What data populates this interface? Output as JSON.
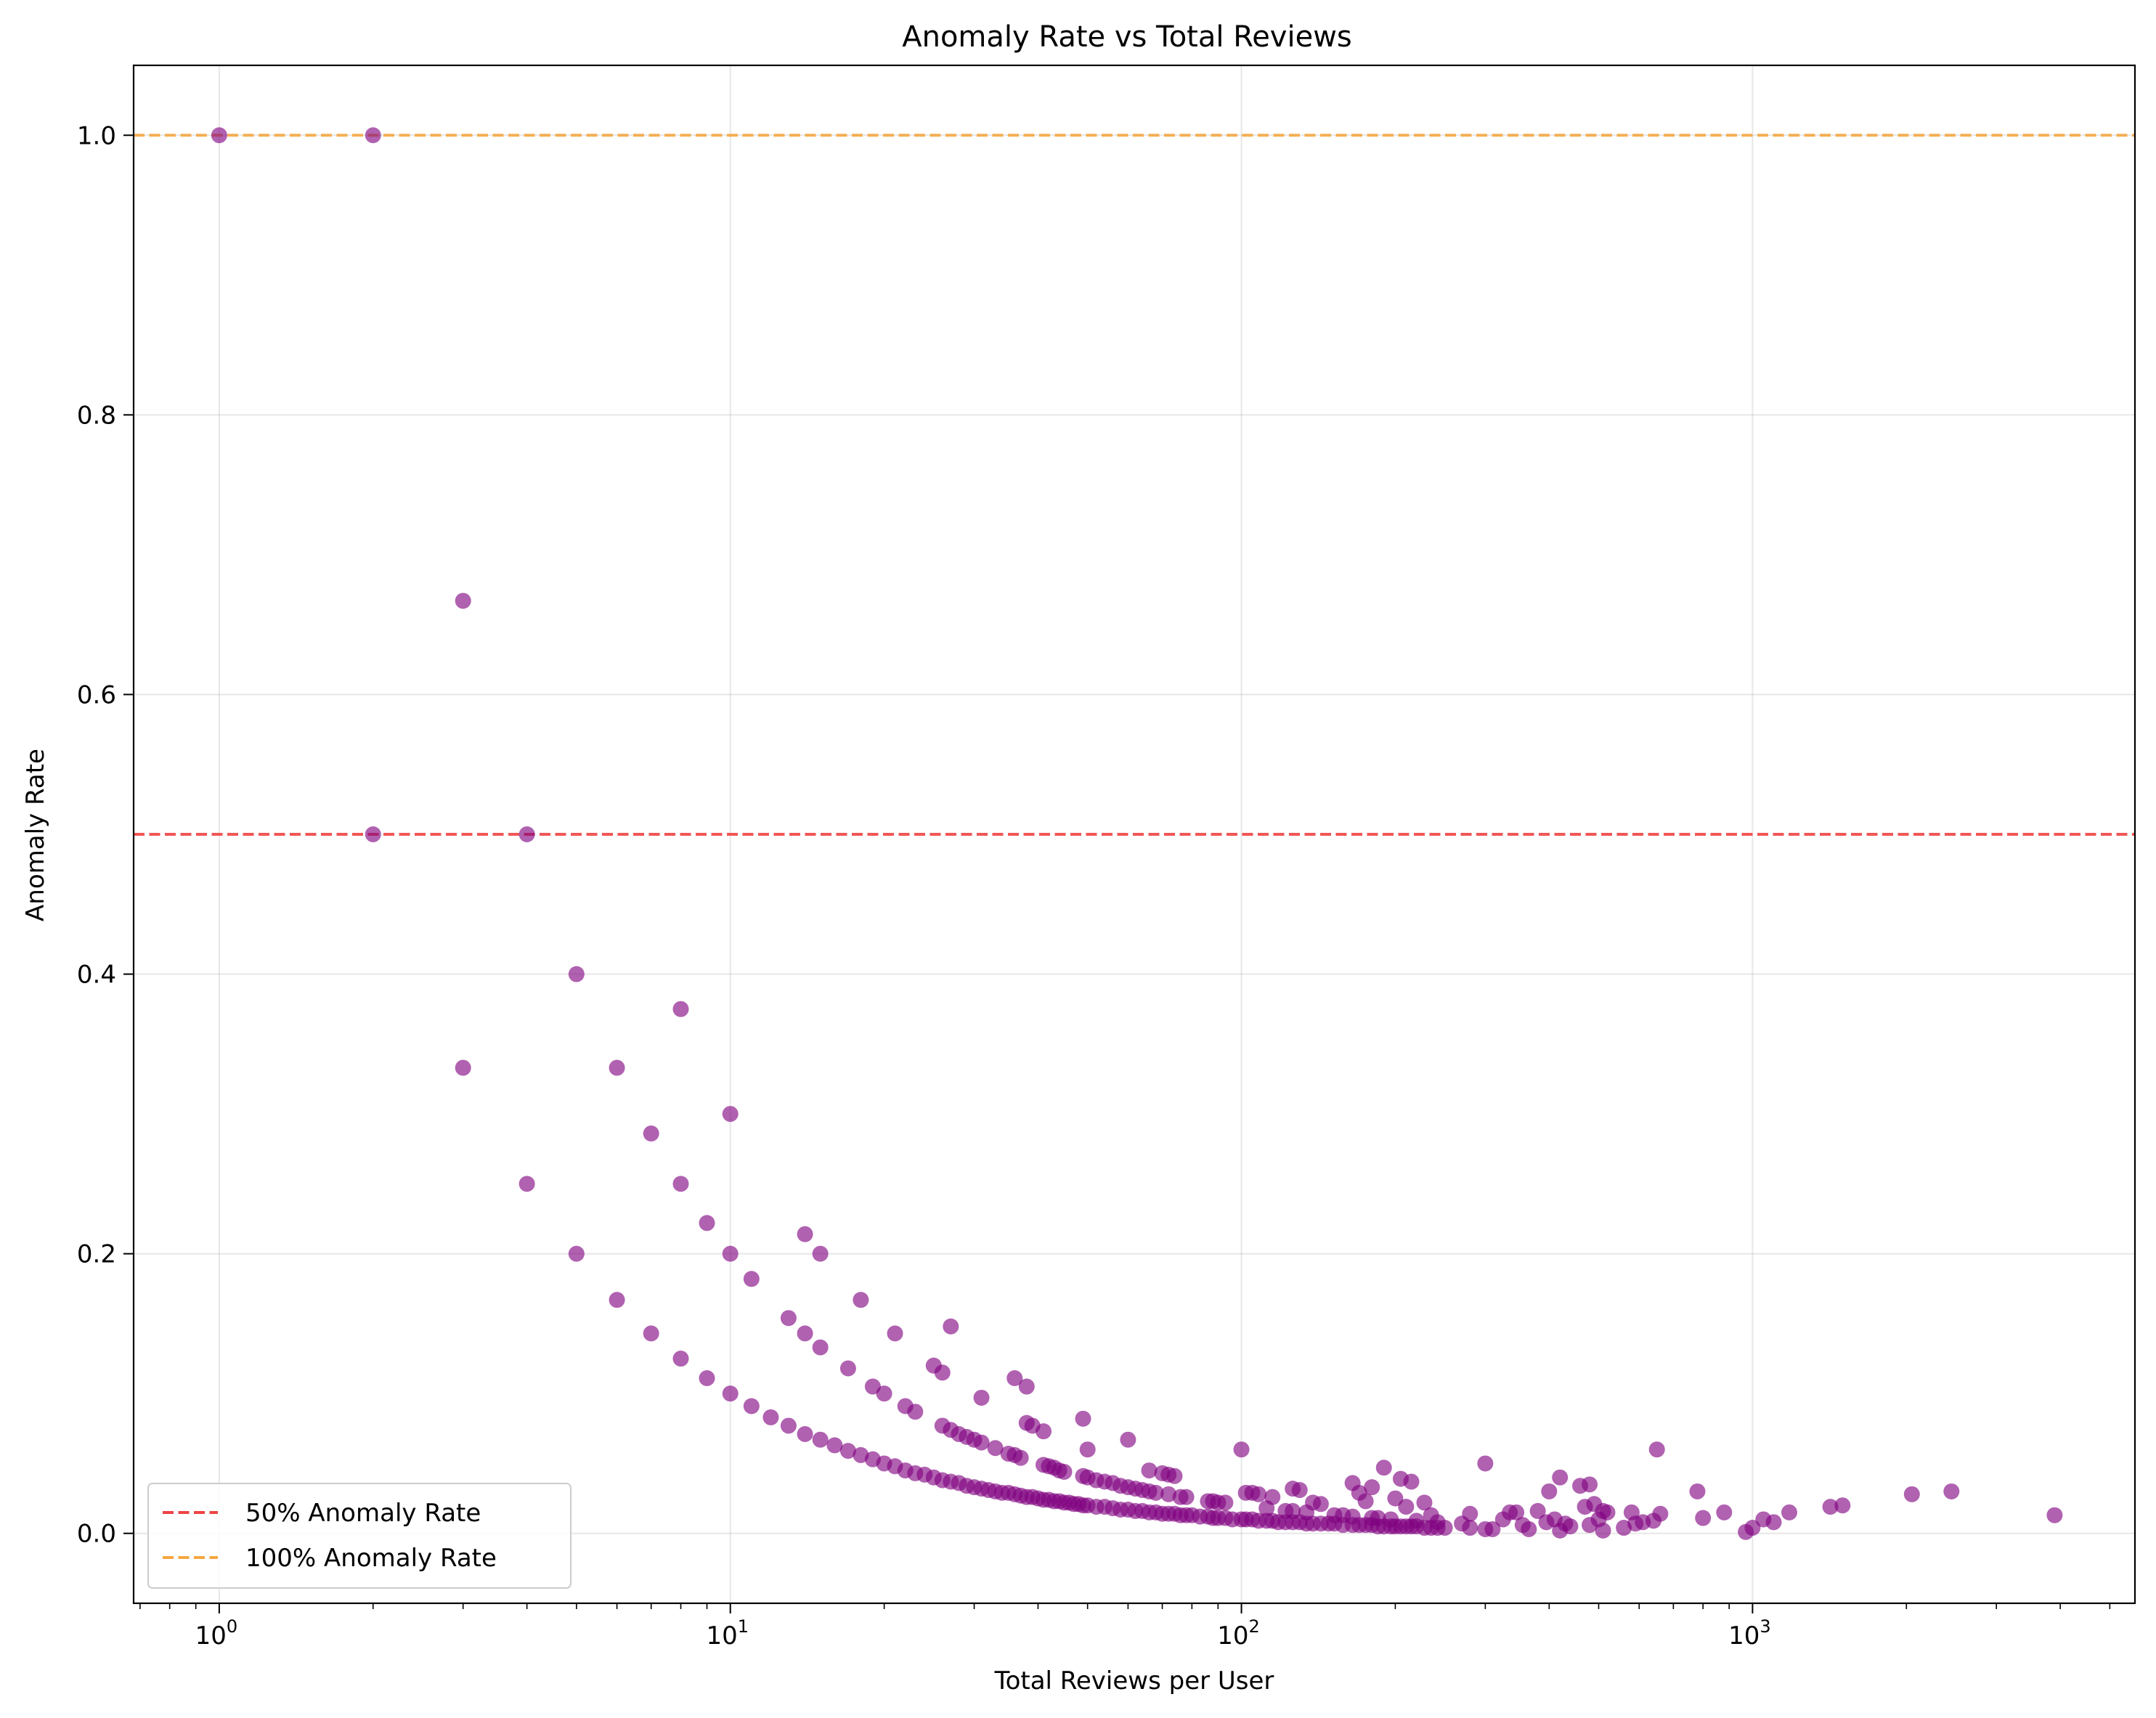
{
  "chart_data": {
    "type": "scatter",
    "title": "Anomaly Rate vs Total Reviews",
    "xlabel": "Total Reviews per User",
    "ylabel": "Anomaly Rate",
    "xscale": "log",
    "xlim": [
      0.68,
      5600
    ],
    "ylim": [
      -0.05,
      1.05
    ],
    "grid": true,
    "legend_position": "lower-left",
    "x_ticks": [
      {
        "value": 1,
        "base": "10",
        "exp": "0"
      },
      {
        "value": 10,
        "base": "10",
        "exp": "1"
      },
      {
        "value": 100,
        "base": "10",
        "exp": "2"
      },
      {
        "value": 1000,
        "base": "10",
        "exp": "3"
      }
    ],
    "y_ticks": [
      {
        "value": 0.0,
        "label": "0.0"
      },
      {
        "value": 0.2,
        "label": "0.2"
      },
      {
        "value": 0.4,
        "label": "0.4"
      },
      {
        "value": 0.6,
        "label": "0.6"
      },
      {
        "value": 0.8,
        "label": "0.8"
      },
      {
        "value": 1.0,
        "label": "1.0"
      }
    ],
    "reference_lines": [
      {
        "name": "50% Anomaly Rate",
        "y": 0.5,
        "color": "#ef4444"
      },
      {
        "name": "100% Anomaly Rate",
        "y": 1.0,
        "color": "#f5a742"
      }
    ],
    "point_color": "#800080",
    "series": [
      {
        "points": [
          [
            1,
            1.0
          ],
          [
            2,
            1.0
          ],
          [
            2,
            0.5
          ],
          [
            3,
            0.667
          ],
          [
            3,
            0.333
          ],
          [
            4,
            0.5
          ],
          [
            4,
            0.25
          ],
          [
            5,
            0.4
          ],
          [
            5,
            0.2
          ],
          [
            6,
            0.333
          ],
          [
            6,
            0.167
          ],
          [
            7,
            0.286
          ],
          [
            7,
            0.143
          ],
          [
            8,
            0.375
          ],
          [
            8,
            0.25
          ],
          [
            8,
            0.125
          ],
          [
            9,
            0.222
          ],
          [
            9,
            0.111
          ],
          [
            10,
            0.3
          ],
          [
            10,
            0.2
          ],
          [
            10,
            0.1
          ],
          [
            11,
            0.182
          ],
          [
            11,
            0.091
          ],
          [
            12,
            0.083
          ],
          [
            13,
            0.154
          ],
          [
            13,
            0.077
          ],
          [
            14,
            0.214
          ],
          [
            14,
            0.143
          ],
          [
            14,
            0.071
          ],
          [
            15,
            0.2
          ],
          [
            15,
            0.133
          ],
          [
            15,
            0.067
          ],
          [
            16,
            0.063
          ],
          [
            17,
            0.118
          ],
          [
            17,
            0.059
          ],
          [
            18,
            0.167
          ],
          [
            18,
            0.056
          ],
          [
            19,
            0.105
          ],
          [
            19,
            0.053
          ],
          [
            20,
            0.1
          ],
          [
            20,
            0.05
          ],
          [
            21,
            0.143
          ],
          [
            21,
            0.048
          ],
          [
            22,
            0.091
          ],
          [
            22,
            0.045
          ],
          [
            23,
            0.087
          ],
          [
            23,
            0.043
          ],
          [
            24,
            0.042
          ],
          [
            25,
            0.12
          ],
          [
            25,
            0.04
          ],
          [
            26,
            0.115
          ],
          [
            26,
            0.077
          ],
          [
            26,
            0.038
          ],
          [
            27,
            0.148
          ],
          [
            27,
            0.074
          ],
          [
            27,
            0.037
          ],
          [
            28,
            0.071
          ],
          [
            28,
            0.036
          ],
          [
            29,
            0.069
          ],
          [
            29,
            0.034
          ],
          [
            30,
            0.067
          ],
          [
            30,
            0.033
          ],
          [
            31,
            0.097
          ],
          [
            31,
            0.065
          ],
          [
            31,
            0.032
          ],
          [
            32,
            0.031
          ],
          [
            33,
            0.061
          ],
          [
            33,
            0.03
          ],
          [
            34,
            0.029
          ],
          [
            35,
            0.057
          ],
          [
            35,
            0.029
          ],
          [
            36,
            0.111
          ],
          [
            36,
            0.056
          ],
          [
            36,
            0.028
          ],
          [
            37,
            0.054
          ],
          [
            37,
            0.027
          ],
          [
            38,
            0.105
          ],
          [
            38,
            0.079
          ],
          [
            38,
            0.026
          ],
          [
            39,
            0.077
          ],
          [
            39,
            0.026
          ],
          [
            40,
            0.025
          ],
          [
            41,
            0.073
          ],
          [
            41,
            0.049
          ],
          [
            41,
            0.024
          ],
          [
            42,
            0.048
          ],
          [
            42,
            0.024
          ],
          [
            43,
            0.047
          ],
          [
            43,
            0.023
          ],
          [
            44,
            0.045
          ],
          [
            44,
            0.023
          ],
          [
            45,
            0.044
          ],
          [
            45,
            0.022
          ],
          [
            46,
            0.022
          ],
          [
            47,
            0.021
          ],
          [
            48,
            0.021
          ],
          [
            49,
            0.082
          ],
          [
            49,
            0.041
          ],
          [
            49,
            0.02
          ],
          [
            50,
            0.06
          ],
          [
            50,
            0.04
          ],
          [
            50,
            0.02
          ],
          [
            52,
            0.038
          ],
          [
            52,
            0.019
          ],
          [
            54,
            0.037
          ],
          [
            54,
            0.019
          ],
          [
            56,
            0.036
          ],
          [
            56,
            0.018
          ],
          [
            58,
            0.034
          ],
          [
            58,
            0.017
          ],
          [
            60,
            0.067
          ],
          [
            60,
            0.033
          ],
          [
            60,
            0.017
          ],
          [
            62,
            0.032
          ],
          [
            62,
            0.016
          ],
          [
            64,
            0.031
          ],
          [
            64,
            0.016
          ],
          [
            66,
            0.045
          ],
          [
            66,
            0.03
          ],
          [
            66,
            0.015
          ],
          [
            68,
            0.029
          ],
          [
            68,
            0.015
          ],
          [
            70,
            0.043
          ],
          [
            70,
            0.014
          ],
          [
            72,
            0.042
          ],
          [
            72,
            0.028
          ],
          [
            72,
            0.014
          ],
          [
            74,
            0.041
          ],
          [
            74,
            0.014
          ],
          [
            76,
            0.026
          ],
          [
            76,
            0.013
          ],
          [
            78,
            0.026
          ],
          [
            78,
            0.013
          ],
          [
            80,
            0.013
          ],
          [
            83,
            0.012
          ],
          [
            86,
            0.023
          ],
          [
            86,
            0.012
          ],
          [
            88,
            0.023
          ],
          [
            88,
            0.011
          ],
          [
            90,
            0.022
          ],
          [
            90,
            0.011
          ],
          [
            93,
            0.022
          ],
          [
            93,
            0.011
          ],
          [
            96,
            0.01
          ],
          [
            100,
            0.06
          ],
          [
            100,
            0.01
          ],
          [
            102,
            0.029
          ],
          [
            102,
            0.01
          ],
          [
            105,
            0.029
          ],
          [
            105,
            0.01
          ],
          [
            108,
            0.028
          ],
          [
            108,
            0.009
          ],
          [
            112,
            0.018
          ],
          [
            112,
            0.009
          ],
          [
            115,
            0.026
          ],
          [
            115,
            0.009
          ],
          [
            118,
            0.008
          ],
          [
            122,
            0.016
          ],
          [
            122,
            0.008
          ],
          [
            126,
            0.032
          ],
          [
            126,
            0.016
          ],
          [
            126,
            0.008
          ],
          [
            130,
            0.031
          ],
          [
            130,
            0.008
          ],
          [
            134,
            0.015
          ],
          [
            134,
            0.007
          ],
          [
            138,
            0.022
          ],
          [
            138,
            0.007
          ],
          [
            143,
            0.021
          ],
          [
            143,
            0.007
          ],
          [
            148,
            0.007
          ],
          [
            152,
            0.013
          ],
          [
            152,
            0.007
          ],
          [
            158,
            0.013
          ],
          [
            158,
            0.006
          ],
          [
            165,
            0.036
          ],
          [
            165,
            0.012
          ],
          [
            165,
            0.006
          ],
          [
            170,
            0.029
          ],
          [
            170,
            0.006
          ],
          [
            175,
            0.023
          ],
          [
            175,
            0.006
          ],
          [
            180,
            0.033
          ],
          [
            180,
            0.011
          ],
          [
            180,
            0.006
          ],
          [
            185,
            0.011
          ],
          [
            185,
            0.005
          ],
          [
            190,
            0.047
          ],
          [
            190,
            0.005
          ],
          [
            196,
            0.01
          ],
          [
            196,
            0.005
          ],
          [
            200,
            0.025
          ],
          [
            200,
            0.005
          ],
          [
            205,
            0.039
          ],
          [
            205,
            0.005
          ],
          [
            210,
            0.019
          ],
          [
            210,
            0.005
          ],
          [
            215,
            0.037
          ],
          [
            215,
            0.005
          ],
          [
            220,
            0.009
          ],
          [
            220,
            0.005
          ],
          [
            228,
            0.022
          ],
          [
            228,
            0.004
          ],
          [
            235,
            0.013
          ],
          [
            235,
            0.004
          ],
          [
            242,
            0.008
          ],
          [
            242,
            0.004
          ],
          [
            250,
            0.004
          ],
          [
            270,
            0.007
          ],
          [
            280,
            0.014
          ],
          [
            280,
            0.004
          ],
          [
            300,
            0.05
          ],
          [
            300,
            0.003
          ],
          [
            310,
            0.003
          ],
          [
            325,
            0.01
          ],
          [
            335,
            0.015
          ],
          [
            345,
            0.015
          ],
          [
            355,
            0.006
          ],
          [
            365,
            0.003
          ],
          [
            380,
            0.016
          ],
          [
            395,
            0.008
          ],
          [
            400,
            0.03
          ],
          [
            410,
            0.01
          ],
          [
            420,
            0.04
          ],
          [
            420,
            0.002
          ],
          [
            430,
            0.007
          ],
          [
            440,
            0.005
          ],
          [
            460,
            0.034
          ],
          [
            470,
            0.019
          ],
          [
            480,
            0.035
          ],
          [
            480,
            0.006
          ],
          [
            490,
            0.021
          ],
          [
            500,
            0.01
          ],
          [
            510,
            0.016
          ],
          [
            510,
            0.002
          ],
          [
            520,
            0.015
          ],
          [
            560,
            0.004
          ],
          [
            580,
            0.015
          ],
          [
            590,
            0.007
          ],
          [
            610,
            0.008
          ],
          [
            640,
            0.009
          ],
          [
            650,
            0.06
          ],
          [
            660,
            0.014
          ],
          [
            780,
            0.03
          ],
          [
            800,
            0.011
          ],
          [
            880,
            0.015
          ],
          [
            970,
            0.001
          ],
          [
            1000,
            0.004
          ],
          [
            1050,
            0.01
          ],
          [
            1100,
            0.008
          ],
          [
            1180,
            0.015
          ],
          [
            1420,
            0.019
          ],
          [
            1500,
            0.02
          ],
          [
            2050,
            0.028
          ],
          [
            2450,
            0.03
          ],
          [
            3900,
            0.013
          ]
        ]
      }
    ]
  }
}
